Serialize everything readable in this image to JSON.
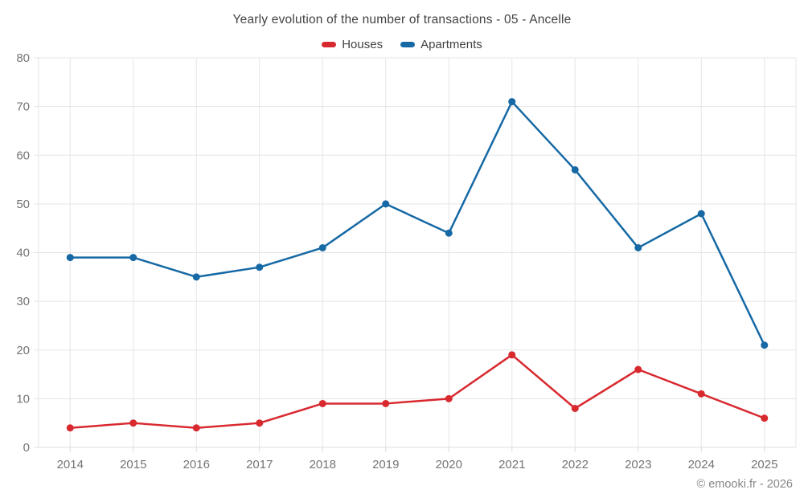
{
  "chart_data": {
    "type": "line",
    "title": "Yearly evolution of the number of transactions - 05 - Ancelle",
    "categories": [
      "2014",
      "2015",
      "2016",
      "2017",
      "2018",
      "2019",
      "2020",
      "2021",
      "2022",
      "2023",
      "2024",
      "2025"
    ],
    "series": [
      {
        "name": "Houses",
        "color": "#d8292f",
        "values": [
          4,
          5,
          4,
          5,
          9,
          9,
          10,
          19,
          8,
          16,
          11,
          6
        ]
      },
      {
        "name": "Apartments",
        "color": "#1669a5",
        "values": [
          39,
          39,
          35,
          37,
          41,
          50,
          44,
          71,
          57,
          41,
          48,
          21
        ]
      }
    ],
    "ylim": [
      0,
      80
    ],
    "ytick_step": 10,
    "grid": true,
    "legend_position": "top",
    "colors": {
      "grid": "#e5e5e5",
      "axis_line": "#dcdcdc",
      "tick_label": "#757575",
      "title": "#424242",
      "background": "#ffffff"
    }
  },
  "footer": {
    "copyright": "© emooki.fr - 2026"
  }
}
